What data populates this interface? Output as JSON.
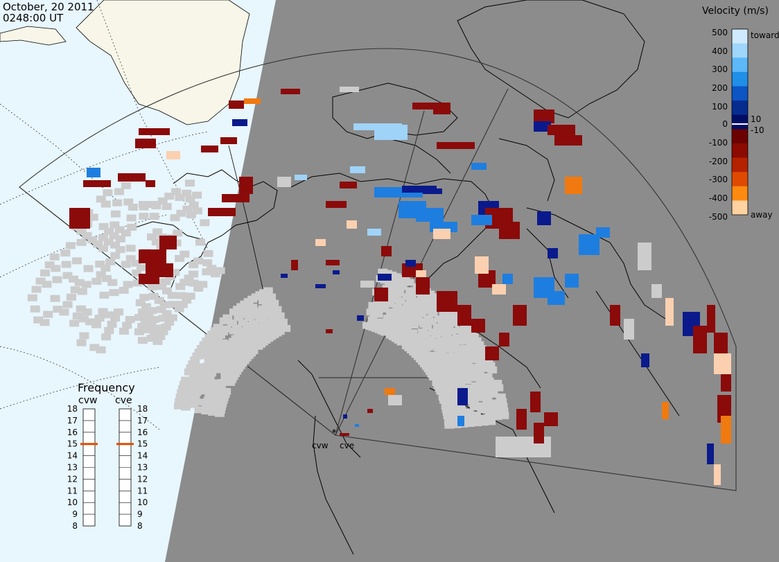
{
  "header": {
    "date": "October, 20 2011",
    "time": "0248:00 UT"
  },
  "colors": {
    "sunlit_ocean": "#e8f6fd",
    "sunlit_land": "#f7f6e9",
    "night": "#8c8c8c",
    "ground_scatter": "#cccccc",
    "coastline": "#000000"
  },
  "velocity_scale": {
    "title": "Velocity (m/s)",
    "toward_label": "toward",
    "away_label": "away",
    "ticks": [
      "500",
      "400",
      "300",
      "200",
      "100",
      "10",
      "0",
      "-10",
      "-100",
      "-200",
      "-300",
      "-400",
      "-500"
    ],
    "colors": [
      "#cfeaff",
      "#9fd6fb",
      "#5cb8f6",
      "#1f8fe8",
      "#0b55c4",
      "#062c8f",
      "#000d66",
      "#6b0000",
      "#8c0a00",
      "#b52200",
      "#e04a00",
      "#ff8a10",
      "#ffd2a0"
    ]
  },
  "frequency": {
    "title": "Frequency",
    "radars": [
      {
        "code": "cvw",
        "selected_mhz": 15
      },
      {
        "code": "cve",
        "selected_mhz": 15
      }
    ],
    "ticks": [
      "18",
      "17",
      "16",
      "15",
      "14",
      "13",
      "12",
      "11",
      "10",
      "9",
      "8"
    ],
    "marker_color": "#e04a00"
  },
  "radar_sites": [
    "cvw",
    "cve"
  ],
  "echo_classes": {
    "ground_scatter": "#cccccc",
    "neg_dark": "#8b0a0a",
    "pos_dark": "#0a1a8c",
    "pos_mid": "#1e7ee0",
    "pos_light": "#9fd3f7",
    "neg_orange": "#f07a10",
    "neg_light": "#fbd0b0"
  }
}
